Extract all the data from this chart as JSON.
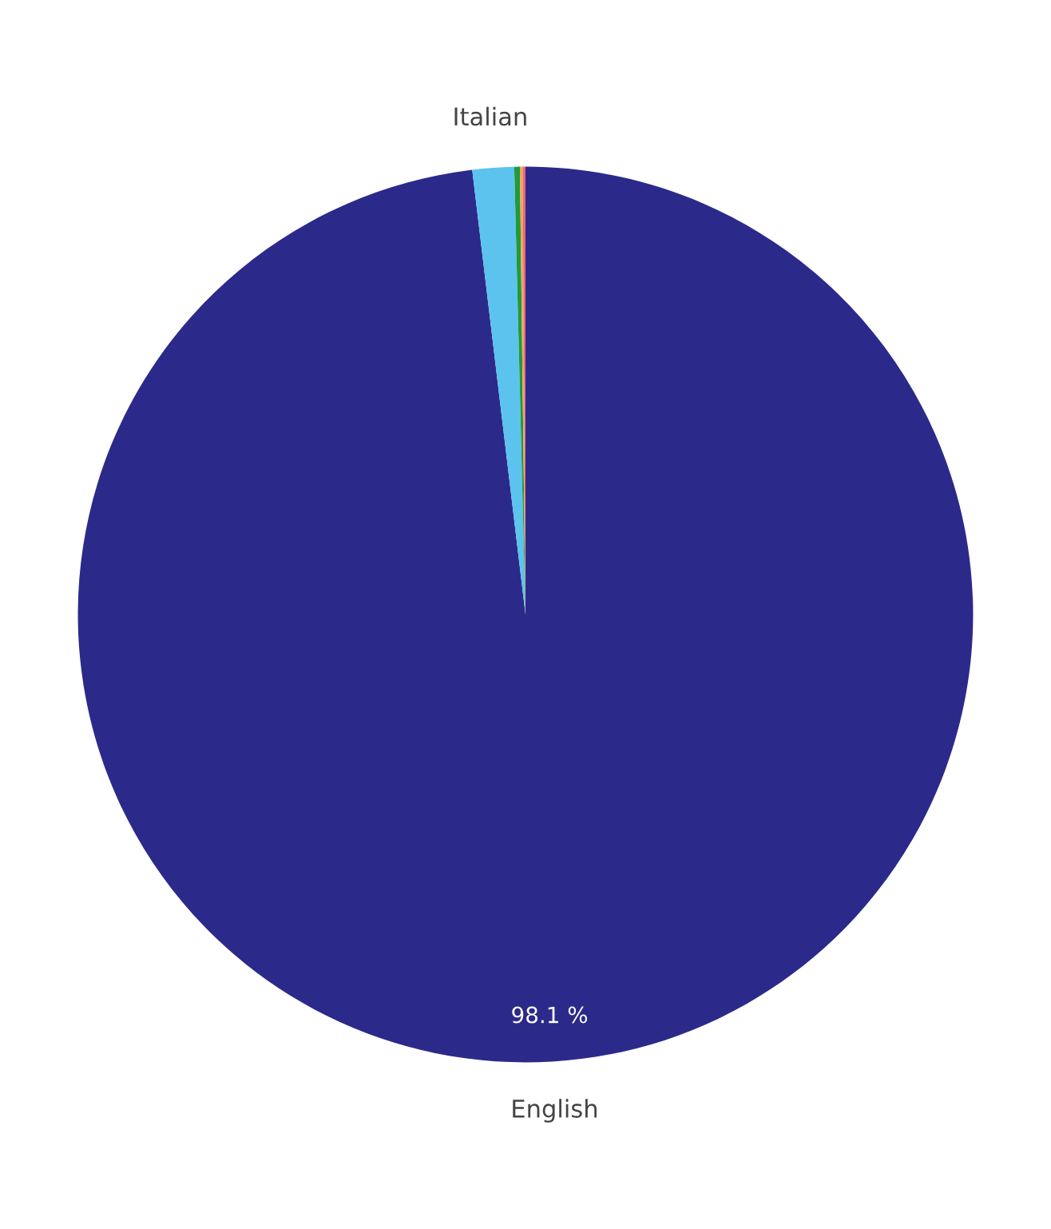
{
  "chart_data": {
    "type": "pie",
    "categories": [
      "English",
      "Italian",
      null,
      null,
      null
    ],
    "values": [
      98.1,
      1.5,
      0.2,
      0.1,
      0.1
    ],
    "colors": [
      "#2b2a8a",
      "#5cc3ee",
      "#1f9a3c",
      "#f2a65a",
      "#e8677a"
    ],
    "value_labels": [
      "98.1 %",
      null,
      null,
      null,
      null
    ]
  }
}
